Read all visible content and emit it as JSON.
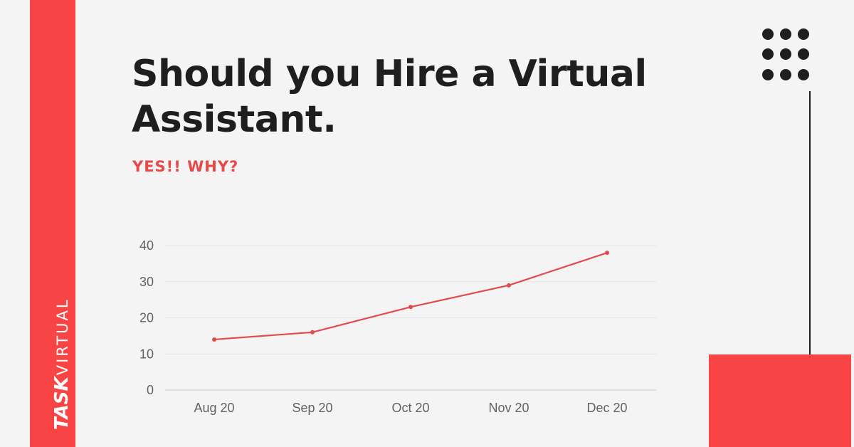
{
  "brand": {
    "logo_word_1": "TASK",
    "logo_word_2": "VIRTUAL",
    "accent_color": "#f84444",
    "dark_color": "#1e1e1e"
  },
  "title": "Should you Hire a Virtual Assistant.",
  "subtitle": "YES!! WHY?",
  "decor": {
    "dots_icon": "dot-grid-icon"
  },
  "chart_data": {
    "type": "line",
    "categories": [
      "Aug 20",
      "Sep 20",
      "Oct 20",
      "Nov 20",
      "Dec 20"
    ],
    "series": [
      {
        "values": [
          14,
          16,
          23,
          29,
          38
        ],
        "color": "#e24b4b"
      }
    ],
    "title": "",
    "xlabel": "",
    "ylabel": "",
    "ylim": [
      0,
      40
    ],
    "yticks": [
      0,
      10,
      20,
      30,
      40
    ],
    "grid": true,
    "legend": "none"
  }
}
